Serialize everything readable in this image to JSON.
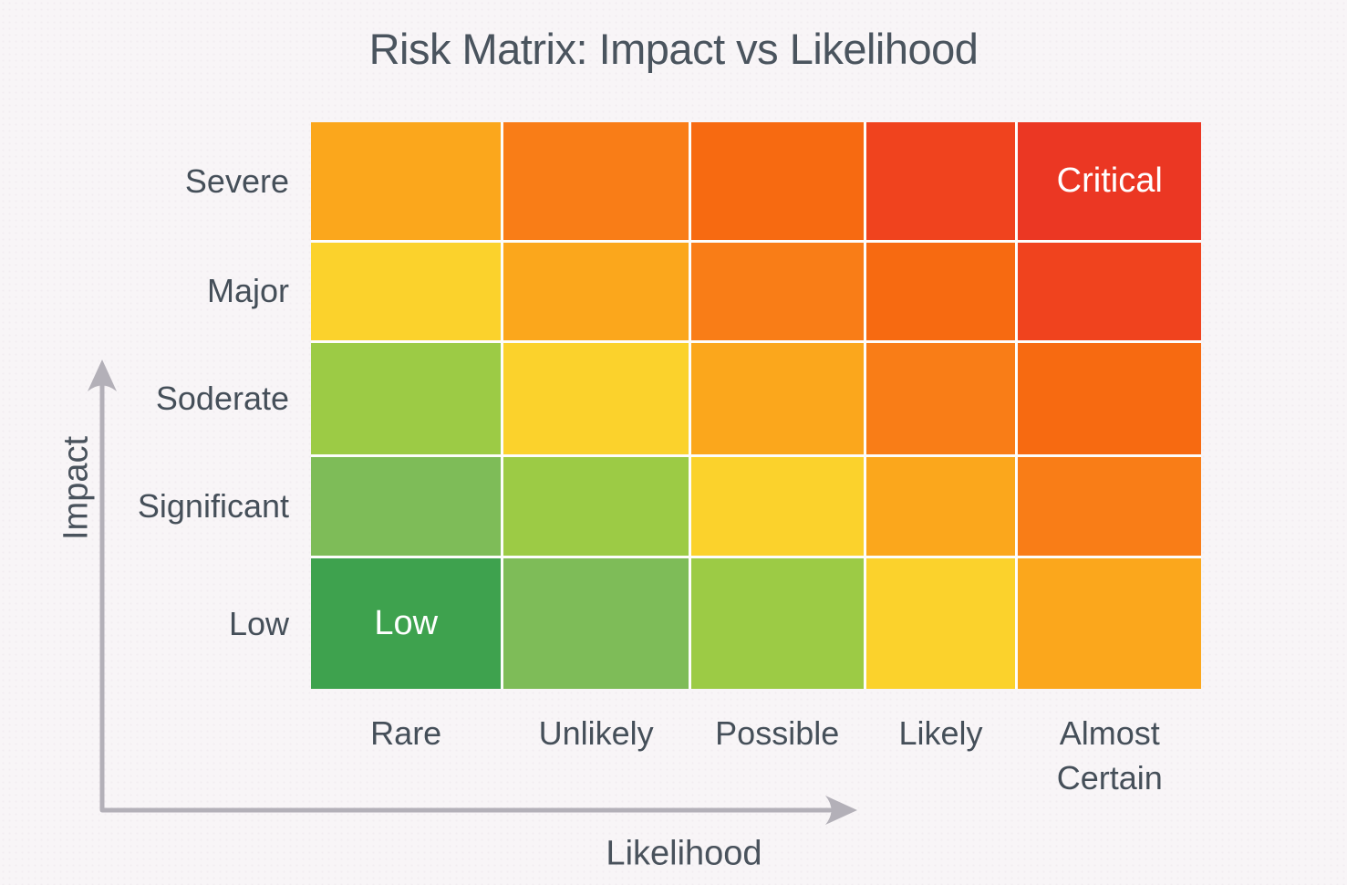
{
  "title": "Risk Matrix: Impact vs Likelihood",
  "colors": {
    "background": "#F8F5F7",
    "title_text": "#4A545E",
    "axis_text": "#49525C",
    "arrow": "#B3B0B8",
    "gridline": "#FDFDFB",
    "cell_label_text": "#FFFFFF"
  },
  "chart_data": {
    "type": "heatmap",
    "title": "Risk Matrix: Impact vs Likelihood",
    "xlabel": "Likelihood",
    "ylabel": "Impact",
    "x_categories": [
      "Rare",
      "Unlikely",
      "Possible",
      "Likely",
      "Almost Certain"
    ],
    "y_categories_top_to_bottom": [
      "Severe",
      "Major",
      "Soderate",
      "Significant",
      "Low"
    ],
    "grid": "white gridlines between cells",
    "legend_position": "none",
    "risk_palette": {
      "2": "#3EA24E",
      "3": "#7EBC58",
      "4": "#9CCB45",
      "5": "#FBD22C",
      "6": "#FBA71C",
      "7": "#F97D17",
      "8": "#F76A11",
      "9": "#F0431E",
      "10": "#EB3723"
    },
    "rows": [
      {
        "impact": "Severe",
        "cells": [
          {
            "likelihood": "Rare",
            "risk_score": 6,
            "color": "#FBA71C",
            "label": ""
          },
          {
            "likelihood": "Unlikely",
            "risk_score": 7,
            "color": "#F97D17",
            "label": ""
          },
          {
            "likelihood": "Possible",
            "risk_score": 8,
            "color": "#F76A11",
            "label": ""
          },
          {
            "likelihood": "Likely",
            "risk_score": 9,
            "color": "#F0431E",
            "label": ""
          },
          {
            "likelihood": "Almost Certain",
            "risk_score": 10,
            "color": "#EB3723",
            "label": "Critical"
          }
        ]
      },
      {
        "impact": "Major",
        "cells": [
          {
            "likelihood": "Rare",
            "risk_score": 5,
            "color": "#FBD22C",
            "label": ""
          },
          {
            "likelihood": "Unlikely",
            "risk_score": 6,
            "color": "#FBA71C",
            "label": ""
          },
          {
            "likelihood": "Possible",
            "risk_score": 7,
            "color": "#F97D17",
            "label": ""
          },
          {
            "likelihood": "Likely",
            "risk_score": 8,
            "color": "#F76A11",
            "label": ""
          },
          {
            "likelihood": "Almost Certain",
            "risk_score": 9,
            "color": "#F0431E",
            "label": ""
          }
        ]
      },
      {
        "impact": "Soderate",
        "cells": [
          {
            "likelihood": "Rare",
            "risk_score": 4,
            "color": "#9CCB45",
            "label": ""
          },
          {
            "likelihood": "Unlikely",
            "risk_score": 5,
            "color": "#FBD22C",
            "label": ""
          },
          {
            "likelihood": "Possible",
            "risk_score": 6,
            "color": "#FBA71C",
            "label": ""
          },
          {
            "likelihood": "Likely",
            "risk_score": 7,
            "color": "#F97D17",
            "label": ""
          },
          {
            "likelihood": "Almost Certain",
            "risk_score": 8,
            "color": "#F76A11",
            "label": ""
          }
        ]
      },
      {
        "impact": "Significant",
        "cells": [
          {
            "likelihood": "Rare",
            "risk_score": 3,
            "color": "#7EBC58",
            "label": ""
          },
          {
            "likelihood": "Unlikely",
            "risk_score": 4,
            "color": "#9CCB45",
            "label": ""
          },
          {
            "likelihood": "Possible",
            "risk_score": 5,
            "color": "#FBD22C",
            "label": ""
          },
          {
            "likelihood": "Likely",
            "risk_score": 6,
            "color": "#FBA71C",
            "label": ""
          },
          {
            "likelihood": "Almost Certain",
            "risk_score": 7,
            "color": "#F97D17",
            "label": ""
          }
        ]
      },
      {
        "impact": "Low",
        "cells": [
          {
            "likelihood": "Rare",
            "risk_score": 2,
            "color": "#3EA24E",
            "label": "Low"
          },
          {
            "likelihood": "Unlikely",
            "risk_score": 3,
            "color": "#7EBC58",
            "label": ""
          },
          {
            "likelihood": "Possible",
            "risk_score": 4,
            "color": "#9CCB45",
            "label": ""
          },
          {
            "likelihood": "Likely",
            "risk_score": 5,
            "color": "#FBD22C",
            "label": ""
          },
          {
            "likelihood": "Almost Certain",
            "risk_score": 6,
            "color": "#FBA71C",
            "label": ""
          }
        ]
      }
    ],
    "annotations": [
      {
        "row": "Severe",
        "col": "Almost Certain",
        "text": "Critical",
        "text_color": "#FFFFFF"
      },
      {
        "row": "Low",
        "col": "Rare",
        "text": "Low",
        "text_color": "#FFFFFF"
      }
    ]
  }
}
